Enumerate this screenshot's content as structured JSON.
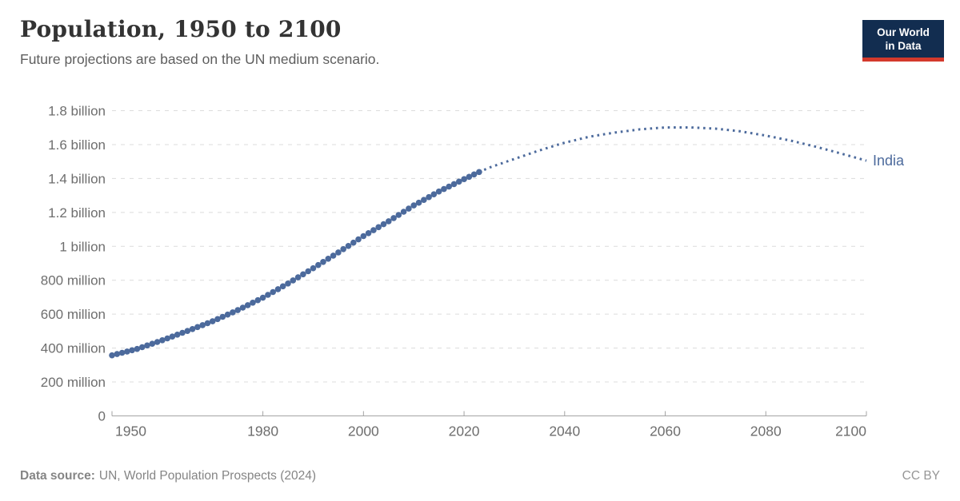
{
  "logo": {
    "line1": "Our World",
    "line2": "in Data",
    "bg_color": "#122d50",
    "bar_color": "#d3392c"
  },
  "footer": {
    "source_label": "Data source:",
    "source_text": "UN, World Population Prospects (2024)",
    "license": "CC BY"
  },
  "chart_data": {
    "type": "line",
    "title": "Population, 1950 to 2100",
    "subtitle": "Future projections are based on the UN medium scenario.",
    "entity": "India",
    "unit": "billion people",
    "xlim": [
      1950,
      2100
    ],
    "ylim": [
      0,
      1.8
    ],
    "grid": true,
    "legend_position": "end-of-line",
    "x_ticks": [
      {
        "value": 1950,
        "label": "1950"
      },
      {
        "value": 1980,
        "label": "1980"
      },
      {
        "value": 2000,
        "label": "2000"
      },
      {
        "value": 2020,
        "label": "2020"
      },
      {
        "value": 2040,
        "label": "2040"
      },
      {
        "value": 2060,
        "label": "2060"
      },
      {
        "value": 2080,
        "label": "2080"
      },
      {
        "value": 2100,
        "label": "2100"
      }
    ],
    "y_ticks": [
      {
        "value": 0,
        "label": "0"
      },
      {
        "value": 0.2,
        "label": "200 million"
      },
      {
        "value": 0.4,
        "label": "400 million"
      },
      {
        "value": 0.6,
        "label": "600 million"
      },
      {
        "value": 0.8,
        "label": "800 million"
      },
      {
        "value": 1.0,
        "label": "1 billion"
      },
      {
        "value": 1.2,
        "label": "1.2 billion"
      },
      {
        "value": 1.4,
        "label": "1.4 billion"
      },
      {
        "value": 1.6,
        "label": "1.6 billion"
      },
      {
        "value": 1.8,
        "label": "1.8 billion"
      }
    ],
    "series": [
      {
        "name": "observed",
        "style": "dots",
        "points": [
          [
            1950,
            0.357
          ],
          [
            1955,
            0.395
          ],
          [
            1960,
            0.446
          ],
          [
            1965,
            0.501
          ],
          [
            1970,
            0.558
          ],
          [
            1975,
            0.624
          ],
          [
            1980,
            0.697
          ],
          [
            1985,
            0.781
          ],
          [
            1990,
            0.871
          ],
          [
            1995,
            0.964
          ],
          [
            2000,
            1.06
          ],
          [
            2005,
            1.148
          ],
          [
            2010,
            1.241
          ],
          [
            2015,
            1.323
          ],
          [
            2020,
            1.396
          ],
          [
            2023,
            1.438
          ]
        ]
      },
      {
        "name": "projected",
        "style": "dotted",
        "points": [
          [
            2023,
            1.438
          ],
          [
            2025,
            1.464
          ],
          [
            2030,
            1.515
          ],
          [
            2035,
            1.566
          ],
          [
            2040,
            1.611
          ],
          [
            2045,
            1.647
          ],
          [
            2050,
            1.671
          ],
          [
            2055,
            1.69
          ],
          [
            2060,
            1.701
          ],
          [
            2065,
            1.701
          ],
          [
            2070,
            1.694
          ],
          [
            2075,
            1.678
          ],
          [
            2080,
            1.653
          ],
          [
            2085,
            1.623
          ],
          [
            2090,
            1.587
          ],
          [
            2095,
            1.547
          ],
          [
            2100,
            1.505
          ]
        ]
      }
    ],
    "colors": {
      "line": "#4c6a9c",
      "grid": "#dcdcdc",
      "axis": "#a3a3a3",
      "tick_label": "#6e6e6e"
    }
  }
}
